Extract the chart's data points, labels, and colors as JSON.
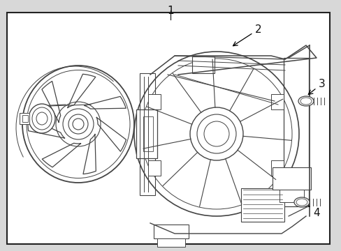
{
  "bg_color": "#d8d8d8",
  "border_color": "#222222",
  "line_color": "#444444",
  "label_color": "#111111",
  "fig_bg": "#d8d8d8"
}
